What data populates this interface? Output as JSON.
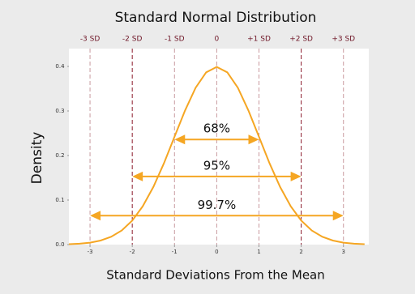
{
  "chart_data": {
    "type": "line",
    "title": "Standard Normal Distribution",
    "xlabel": "Standard Deviations From the Mean",
    "ylabel": "Density",
    "x": [
      -3.5,
      -3.25,
      -3,
      -2.75,
      -2.5,
      -2.25,
      -2,
      -1.75,
      -1.5,
      -1.25,
      -1,
      -0.75,
      -0.5,
      -0.25,
      0,
      0.25,
      0.5,
      0.75,
      1,
      1.25,
      1.5,
      1.75,
      2,
      2.25,
      2.5,
      2.75,
      3,
      3.25,
      3.5
    ],
    "series": [
      {
        "name": "Density",
        "color": "#f5a623",
        "values": [
          0.0009,
          0.002,
          0.0044,
          0.0091,
          0.0175,
          0.0317,
          0.054,
          0.0863,
          0.1295,
          0.1826,
          0.242,
          0.3011,
          0.3521,
          0.3867,
          0.3989,
          0.3867,
          0.3521,
          0.3011,
          0.242,
          0.1826,
          0.1295,
          0.0863,
          0.054,
          0.0317,
          0.0175,
          0.0091,
          0.0044,
          0.002,
          0.0009
        ]
      }
    ],
    "xlim": [
      -3.5,
      3.6
    ],
    "ylim": [
      0,
      0.44
    ],
    "xticks": [
      -3,
      -2,
      -1,
      0,
      1,
      2,
      3
    ],
    "yticks": [
      {
        "value": 0,
        "label": "0.0"
      },
      0.1,
      0.2,
      0.3,
      0.4
    ],
    "sd_lines": [
      {
        "value": -3,
        "label": "-3 SD",
        "color": "#c99a9f"
      },
      {
        "value": -2,
        "label": "-2 SD",
        "color": "#8b1a2b"
      },
      {
        "value": -1,
        "label": "-1 SD",
        "color": "#c99a9f"
      },
      {
        "value": 0,
        "label": "0",
        "color": "#c99a9f"
      },
      {
        "value": 1,
        "label": "+1 SD",
        "color": "#c99a9f"
      },
      {
        "value": 2,
        "label": "+2 SD",
        "color": "#8b1a2b"
      },
      {
        "value": 3,
        "label": "+3 SD",
        "color": "#c99a9f"
      }
    ],
    "sd_label_color": "#6e1526",
    "ranges": [
      {
        "label": "68%",
        "from": -1,
        "to": 1,
        "y": 0.236
      },
      {
        "label": "95%",
        "from": -2,
        "to": 2,
        "y": 0.153
      },
      {
        "label": "99.7%",
        "from": -3,
        "to": 3,
        "y": 0.065
      }
    ],
    "range_color": "#f5a623"
  }
}
